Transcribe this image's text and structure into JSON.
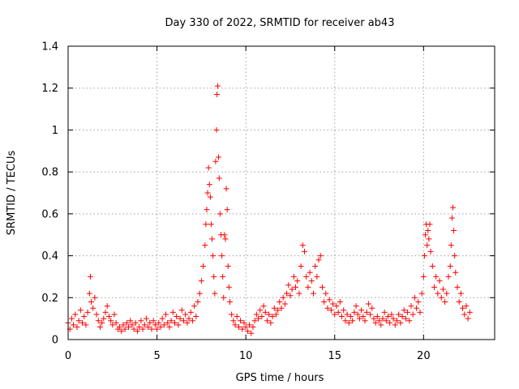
{
  "chart_data": {
    "type": "scatter",
    "title": "Day 330 of 2022, SRMTID for receiver ab43",
    "xlabel": "GPS time / hours",
    "ylabel": "SRMTID / TECUs",
    "xlim": [
      0,
      24
    ],
    "ylim": [
      0,
      1.4
    ],
    "x_ticks": [
      0,
      5,
      10,
      15,
      20
    ],
    "x_tick_labels": [
      "0",
      "5",
      "10",
      "15",
      "20"
    ],
    "y_ticks": [
      0,
      0.2,
      0.4,
      0.6,
      0.8,
      1.0,
      1.2,
      1.4
    ],
    "y_tick_labels": [
      "0",
      "0.2",
      "0.4",
      "0.6",
      "0.8",
      "1",
      "1.2",
      "1.4"
    ],
    "grid": true,
    "marker": "+",
    "series": [
      {
        "name": "SRMTID",
        "color": "#ff0000",
        "points": [
          [
            0.0,
            0.08
          ],
          [
            0.1,
            0.05
          ],
          [
            0.2,
            0.1
          ],
          [
            0.3,
            0.07
          ],
          [
            0.4,
            0.12
          ],
          [
            0.5,
            0.06
          ],
          [
            0.6,
            0.09
          ],
          [
            0.7,
            0.14
          ],
          [
            0.8,
            0.08
          ],
          [
            0.9,
            0.11
          ],
          [
            1.0,
            0.07
          ],
          [
            1.1,
            0.13
          ],
          [
            1.2,
            0.22
          ],
          [
            1.25,
            0.3
          ],
          [
            1.3,
            0.18
          ],
          [
            1.4,
            0.15
          ],
          [
            1.5,
            0.2
          ],
          [
            1.6,
            0.12
          ],
          [
            1.7,
            0.09
          ],
          [
            1.8,
            0.06
          ],
          [
            1.9,
            0.08
          ],
          [
            2.0,
            0.1
          ],
          [
            2.1,
            0.13
          ],
          [
            2.2,
            0.16
          ],
          [
            2.3,
            0.11
          ],
          [
            2.4,
            0.09
          ],
          [
            2.5,
            0.07
          ],
          [
            2.6,
            0.12
          ],
          [
            2.7,
            0.08
          ],
          [
            2.8,
            0.05
          ],
          [
            2.9,
            0.06
          ],
          [
            3.0,
            0.04
          ],
          [
            3.1,
            0.07
          ],
          [
            3.2,
            0.05
          ],
          [
            3.3,
            0.08
          ],
          [
            3.4,
            0.06
          ],
          [
            3.5,
            0.09
          ],
          [
            3.6,
            0.07
          ],
          [
            3.7,
            0.05
          ],
          [
            3.8,
            0.08
          ],
          [
            3.9,
            0.04
          ],
          [
            4.0,
            0.06
          ],
          [
            4.1,
            0.09
          ],
          [
            4.2,
            0.05
          ],
          [
            4.3,
            0.07
          ],
          [
            4.4,
            0.1
          ],
          [
            4.5,
            0.06
          ],
          [
            4.6,
            0.08
          ],
          [
            4.7,
            0.05
          ],
          [
            4.8,
            0.09
          ],
          [
            4.9,
            0.07
          ],
          [
            5.0,
            0.05
          ],
          [
            5.1,
            0.08
          ],
          [
            5.2,
            0.06
          ],
          [
            5.3,
            0.1
          ],
          [
            5.4,
            0.07
          ],
          [
            5.5,
            0.12
          ],
          [
            5.6,
            0.08
          ],
          [
            5.7,
            0.06
          ],
          [
            5.8,
            0.09
          ],
          [
            5.9,
            0.13
          ],
          [
            6.0,
            0.08
          ],
          [
            6.1,
            0.11
          ],
          [
            6.2,
            0.07
          ],
          [
            6.3,
            0.1
          ],
          [
            6.4,
            0.14
          ],
          [
            6.5,
            0.09
          ],
          [
            6.6,
            0.12
          ],
          [
            6.7,
            0.08
          ],
          [
            6.8,
            0.1
          ],
          [
            6.9,
            0.13
          ],
          [
            7.0,
            0.09
          ],
          [
            7.1,
            0.16
          ],
          [
            7.2,
            0.11
          ],
          [
            7.3,
            0.18
          ],
          [
            7.4,
            0.22
          ],
          [
            7.5,
            0.28
          ],
          [
            7.6,
            0.35
          ],
          [
            7.7,
            0.45
          ],
          [
            7.75,
            0.55
          ],
          [
            7.8,
            0.62
          ],
          [
            7.85,
            0.7
          ],
          [
            7.9,
            0.82
          ],
          [
            7.95,
            0.74
          ],
          [
            8.0,
            0.68
          ],
          [
            8.05,
            0.55
          ],
          [
            8.1,
            0.48
          ],
          [
            8.15,
            0.4
          ],
          [
            8.2,
            0.3
          ],
          [
            8.25,
            0.22
          ],
          [
            8.3,
            0.85
          ],
          [
            8.35,
            1.0
          ],
          [
            8.38,
            1.17
          ],
          [
            8.42,
            1.21
          ],
          [
            8.46,
            0.87
          ],
          [
            8.5,
            0.77
          ],
          [
            8.55,
            0.6
          ],
          [
            8.6,
            0.5
          ],
          [
            8.65,
            0.4
          ],
          [
            8.7,
            0.3
          ],
          [
            8.75,
            0.2
          ],
          [
            8.8,
            0.5
          ],
          [
            8.85,
            0.48
          ],
          [
            8.9,
            0.72
          ],
          [
            8.95,
            0.62
          ],
          [
            9.0,
            0.35
          ],
          [
            9.05,
            0.25
          ],
          [
            9.1,
            0.18
          ],
          [
            9.2,
            0.12
          ],
          [
            9.3,
            0.09
          ],
          [
            9.4,
            0.07
          ],
          [
            9.5,
            0.11
          ],
          [
            9.6,
            0.06
          ],
          [
            9.7,
            0.09
          ],
          [
            9.8,
            0.05
          ],
          [
            9.9,
            0.08
          ],
          [
            10.0,
            0.06
          ],
          [
            10.1,
            0.04
          ],
          [
            10.2,
            0.07
          ],
          [
            10.3,
            0.03
          ],
          [
            10.4,
            0.06
          ],
          [
            10.5,
            0.09
          ],
          [
            10.6,
            0.12
          ],
          [
            10.7,
            0.1
          ],
          [
            10.8,
            0.14
          ],
          [
            10.9,
            0.11
          ],
          [
            11.0,
            0.16
          ],
          [
            11.1,
            0.13
          ],
          [
            11.2,
            0.09
          ],
          [
            11.3,
            0.12
          ],
          [
            11.4,
            0.08
          ],
          [
            11.5,
            0.11
          ],
          [
            11.6,
            0.15
          ],
          [
            11.7,
            0.12
          ],
          [
            11.8,
            0.14
          ],
          [
            11.9,
            0.18
          ],
          [
            12.0,
            0.15
          ],
          [
            12.1,
            0.2
          ],
          [
            12.2,
            0.17
          ],
          [
            12.3,
            0.22
          ],
          [
            12.4,
            0.26
          ],
          [
            12.5,
            0.21
          ],
          [
            12.6,
            0.24
          ],
          [
            12.7,
            0.3
          ],
          [
            12.8,
            0.25
          ],
          [
            12.9,
            0.28
          ],
          [
            13.0,
            0.22
          ],
          [
            13.1,
            0.35
          ],
          [
            13.2,
            0.45
          ],
          [
            13.3,
            0.42
          ],
          [
            13.4,
            0.3
          ],
          [
            13.5,
            0.25
          ],
          [
            13.6,
            0.32
          ],
          [
            13.7,
            0.28
          ],
          [
            13.8,
            0.22
          ],
          [
            13.9,
            0.35
          ],
          [
            14.0,
            0.3
          ],
          [
            14.1,
            0.38
          ],
          [
            14.2,
            0.4
          ],
          [
            14.3,
            0.25
          ],
          [
            14.4,
            0.18
          ],
          [
            14.5,
            0.22
          ],
          [
            14.6,
            0.15
          ],
          [
            14.7,
            0.19
          ],
          [
            14.8,
            0.14
          ],
          [
            14.9,
            0.17
          ],
          [
            15.0,
            0.12
          ],
          [
            15.1,
            0.16
          ],
          [
            15.2,
            0.13
          ],
          [
            15.3,
            0.18
          ],
          [
            15.4,
            0.11
          ],
          [
            15.5,
            0.14
          ],
          [
            15.6,
            0.09
          ],
          [
            15.7,
            0.12
          ],
          [
            15.8,
            0.08
          ],
          [
            15.9,
            0.11
          ],
          [
            16.0,
            0.09
          ],
          [
            16.1,
            0.13
          ],
          [
            16.2,
            0.16
          ],
          [
            16.3,
            0.12
          ],
          [
            16.4,
            0.1
          ],
          [
            16.5,
            0.14
          ],
          [
            16.6,
            0.11
          ],
          [
            16.7,
            0.09
          ],
          [
            16.8,
            0.13
          ],
          [
            16.9,
            0.17
          ],
          [
            17.0,
            0.12
          ],
          [
            17.1,
            0.15
          ],
          [
            17.2,
            0.1
          ],
          [
            17.3,
            0.08
          ],
          [
            17.4,
            0.11
          ],
          [
            17.5,
            0.09
          ],
          [
            17.6,
            0.07
          ],
          [
            17.7,
            0.1
          ],
          [
            17.8,
            0.13
          ],
          [
            17.9,
            0.09
          ],
          [
            18.0,
            0.11
          ],
          [
            18.1,
            0.08
          ],
          [
            18.2,
            0.12
          ],
          [
            18.3,
            0.1
          ],
          [
            18.4,
            0.07
          ],
          [
            18.5,
            0.09
          ],
          [
            18.6,
            0.12
          ],
          [
            18.7,
            0.08
          ],
          [
            18.8,
            0.11
          ],
          [
            18.9,
            0.14
          ],
          [
            19.0,
            0.1
          ],
          [
            19.1,
            0.13
          ],
          [
            19.2,
            0.09
          ],
          [
            19.3,
            0.16
          ],
          [
            19.4,
            0.12
          ],
          [
            19.5,
            0.2
          ],
          [
            19.6,
            0.15
          ],
          [
            19.7,
            0.18
          ],
          [
            19.8,
            0.13
          ],
          [
            19.9,
            0.22
          ],
          [
            20.0,
            0.3
          ],
          [
            20.05,
            0.4
          ],
          [
            20.1,
            0.5
          ],
          [
            20.15,
            0.55
          ],
          [
            20.2,
            0.45
          ],
          [
            20.25,
            0.52
          ],
          [
            20.3,
            0.48
          ],
          [
            20.35,
            0.55
          ],
          [
            20.4,
            0.42
          ],
          [
            20.5,
            0.35
          ],
          [
            20.6,
            0.25
          ],
          [
            20.7,
            0.3
          ],
          [
            20.8,
            0.22
          ],
          [
            20.9,
            0.28
          ],
          [
            21.0,
            0.2
          ],
          [
            21.1,
            0.24
          ],
          [
            21.2,
            0.18
          ],
          [
            21.3,
            0.22
          ],
          [
            21.4,
            0.3
          ],
          [
            21.5,
            0.35
          ],
          [
            21.55,
            0.45
          ],
          [
            21.6,
            0.58
          ],
          [
            21.65,
            0.63
          ],
          [
            21.7,
            0.52
          ],
          [
            21.75,
            0.4
          ],
          [
            21.8,
            0.32
          ],
          [
            21.9,
            0.25
          ],
          [
            22.0,
            0.18
          ],
          [
            22.1,
            0.22
          ],
          [
            22.2,
            0.15
          ],
          [
            22.3,
            0.12
          ],
          [
            22.4,
            0.16
          ],
          [
            22.5,
            0.1
          ],
          [
            22.6,
            0.13
          ]
        ]
      }
    ]
  }
}
